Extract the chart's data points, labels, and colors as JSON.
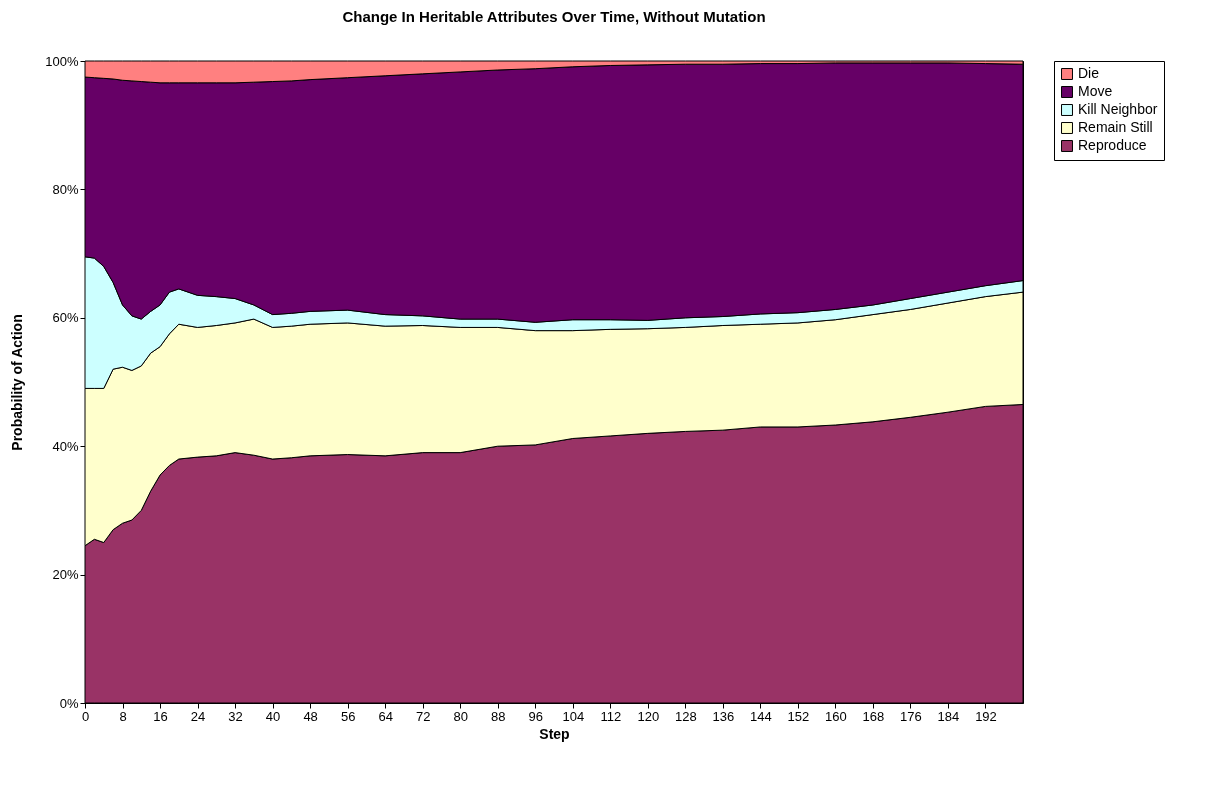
{
  "chart_data": {
    "type": "area",
    "stacked": true,
    "title": "Change In Heritable Attributes Over Time, Without Mutation",
    "xlabel": "Step",
    "ylabel": "Probability of Action",
    "legend": "right",
    "xlim": [
      0,
      200
    ],
    "xticks": [
      0,
      8,
      16,
      24,
      32,
      40,
      48,
      56,
      64,
      72,
      80,
      88,
      96,
      104,
      112,
      120,
      128,
      136,
      144,
      152,
      160,
      168,
      176,
      184,
      192
    ],
    "ylim": [
      0,
      100
    ],
    "yticks": [
      {
        "value": 0,
        "label": "0%"
      },
      {
        "value": 20,
        "label": "20%"
      },
      {
        "value": 40,
        "label": "40%"
      },
      {
        "value": 60,
        "label": "60%"
      },
      {
        "value": 80,
        "label": "80%"
      },
      {
        "value": 100,
        "label": "100%"
      }
    ],
    "x": [
      0,
      2,
      4,
      6,
      8,
      10,
      12,
      14,
      16,
      18,
      20,
      24,
      28,
      32,
      36,
      40,
      44,
      48,
      56,
      64,
      72,
      80,
      88,
      96,
      104,
      112,
      120,
      128,
      136,
      144,
      152,
      160,
      168,
      176,
      184,
      192,
      200
    ],
    "series": [
      {
        "name": "Reproduce",
        "color": "#993366",
        "values": [
          24.5,
          25.5,
          25.0,
          27.0,
          28.0,
          28.5,
          30.0,
          33.0,
          35.5,
          37.0,
          38.0,
          38.3,
          38.5,
          39.0,
          38.6,
          38.0,
          38.2,
          38.5,
          38.7,
          38.5,
          39.0,
          39.0,
          40.0,
          40.2,
          41.2,
          41.6,
          42.0,
          42.3,
          42.5,
          43.0,
          43.0,
          43.3,
          43.8,
          44.5,
          45.3,
          46.2,
          46.5
        ]
      },
      {
        "name": "Remain Still",
        "color": "#ffffcc",
        "values": [
          24.5,
          23.5,
          24.0,
          25.0,
          24.3,
          23.3,
          22.5,
          21.5,
          20.0,
          20.5,
          21.0,
          20.2,
          20.3,
          20.2,
          21.2,
          20.5,
          20.5,
          20.5,
          20.5,
          20.2,
          19.8,
          19.5,
          18.5,
          17.8,
          16.8,
          16.6,
          16.3,
          16.2,
          16.3,
          16.0,
          16.2,
          16.4,
          16.7,
          16.8,
          17.0,
          17.1,
          17.5
        ]
      },
      {
        "name": "Kill Neighbor",
        "color": "#ccffff",
        "values": [
          20.5,
          20.3,
          19.0,
          13.5,
          9.7,
          8.5,
          7.3,
          6.5,
          6.5,
          6.5,
          5.5,
          5.0,
          4.5,
          3.8,
          2.2,
          2.0,
          2.0,
          2.0,
          2.0,
          1.8,
          1.5,
          1.3,
          1.3,
          1.3,
          1.7,
          1.5,
          1.3,
          1.5,
          1.4,
          1.6,
          1.6,
          1.6,
          1.5,
          1.7,
          1.7,
          1.7,
          1.8
        ]
      },
      {
        "name": "Move",
        "color": "#660066",
        "values": [
          28.0,
          28.1,
          29.3,
          31.7,
          35.0,
          36.6,
          37.0,
          35.7,
          34.6,
          32.6,
          32.1,
          33.1,
          33.3,
          33.6,
          34.7,
          36.3,
          36.2,
          36.1,
          36.2,
          37.2,
          37.7,
          38.5,
          38.8,
          39.5,
          39.4,
          39.6,
          39.8,
          39.5,
          39.3,
          39.0,
          38.8,
          38.4,
          37.7,
          36.7,
          35.7,
          34.6,
          33.7
        ]
      },
      {
        "name": "Die",
        "color": "#ff8080",
        "values": [
          2.5,
          2.6,
          2.7,
          2.8,
          3.0,
          3.1,
          3.2,
          3.3,
          3.4,
          3.4,
          3.4,
          3.4,
          3.4,
          3.4,
          3.3,
          3.2,
          3.1,
          2.9,
          2.6,
          2.3,
          2.0,
          1.7,
          1.4,
          1.2,
          0.9,
          0.7,
          0.6,
          0.5,
          0.5,
          0.4,
          0.4,
          0.3,
          0.3,
          0.3,
          0.3,
          0.4,
          0.5
        ]
      }
    ]
  }
}
